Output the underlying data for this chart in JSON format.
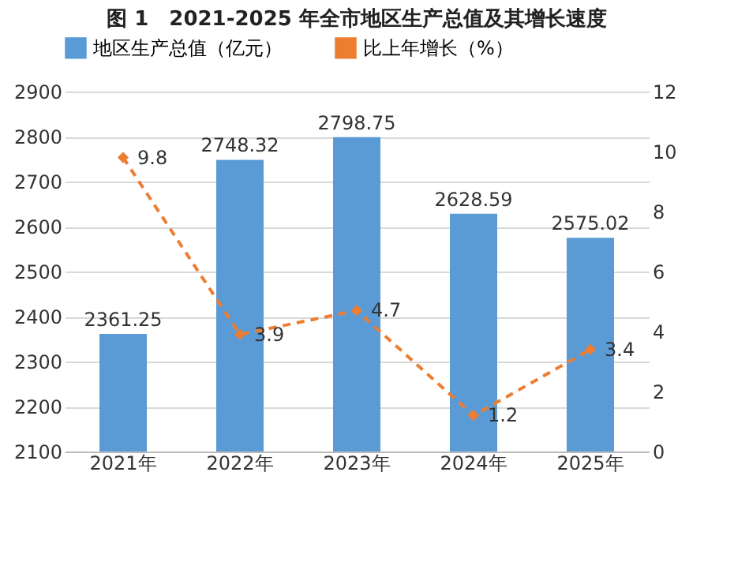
{
  "chart_data": {
    "type": "bar",
    "title": "图 1　2021-2025 年全市地区生产总值及其增长速度",
    "categories": [
      "2021年",
      "2022年",
      "2023年",
      "2024年",
      "2025年"
    ],
    "series": [
      {
        "name": "地区生产总值（亿元）",
        "color": "#5b9bd5",
        "values": [
          2361.25,
          2748.32,
          2798.75,
          2628.59,
          2575.02
        ]
      },
      {
        "name": "比上年增长（%）",
        "type": "line",
        "axis": "y2",
        "color": "#ed7d31",
        "marker": "diamond",
        "line_style": "dashed",
        "values": [
          9.8,
          3.9,
          4.7,
          1.2,
          3.4
        ]
      }
    ],
    "ylim": [
      2100,
      2900
    ],
    "yticks": [
      2100,
      2200,
      2300,
      2400,
      2500,
      2600,
      2700,
      2800,
      2900
    ],
    "y2lim": [
      0,
      12
    ],
    "y2ticks": [
      0,
      2,
      4,
      6,
      8,
      10,
      12
    ],
    "grid": "y",
    "legend": "top",
    "data_labels": true
  }
}
